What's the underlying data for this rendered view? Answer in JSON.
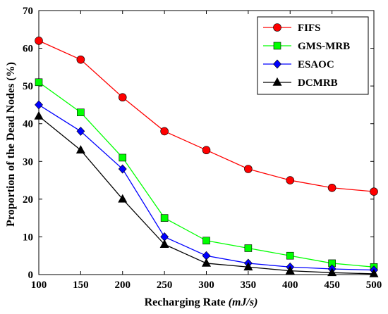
{
  "chart_data": {
    "type": "line",
    "xlabel": "Recharging Rate",
    "xlabel_unit": "(mJ/s)",
    "ylabel": "Proportion of the Dead Nodes (%)",
    "xlim": [
      100,
      500
    ],
    "ylim": [
      0,
      70
    ],
    "xticks": [
      100,
      150,
      200,
      250,
      300,
      350,
      400,
      450,
      500
    ],
    "yticks": [
      0,
      10,
      20,
      30,
      40,
      50,
      60,
      70
    ],
    "grid": false,
    "legend_position": "top-right",
    "x": [
      100,
      150,
      200,
      250,
      300,
      350,
      400,
      450,
      500
    ],
    "series": [
      {
        "name": "FIFS",
        "color": "#ff0000",
        "marker": "circle",
        "values": [
          62,
          57,
          47,
          38,
          33,
          28,
          25,
          23,
          22
        ]
      },
      {
        "name": "GMS-MRB",
        "color": "#00ff00",
        "marker": "square",
        "values": [
          51,
          43,
          31,
          15,
          9,
          7,
          5,
          3,
          2
        ]
      },
      {
        "name": "ESAOC",
        "color": "#0000ff",
        "marker": "diamond",
        "values": [
          45,
          38,
          28,
          10,
          5,
          3,
          2,
          1.5,
          1.2
        ]
      },
      {
        "name": "DCMRB",
        "color": "#000000",
        "marker": "triangle",
        "values": [
          42,
          33,
          20,
          8,
          3,
          2,
          1,
          0.5,
          0.2
        ]
      }
    ]
  }
}
